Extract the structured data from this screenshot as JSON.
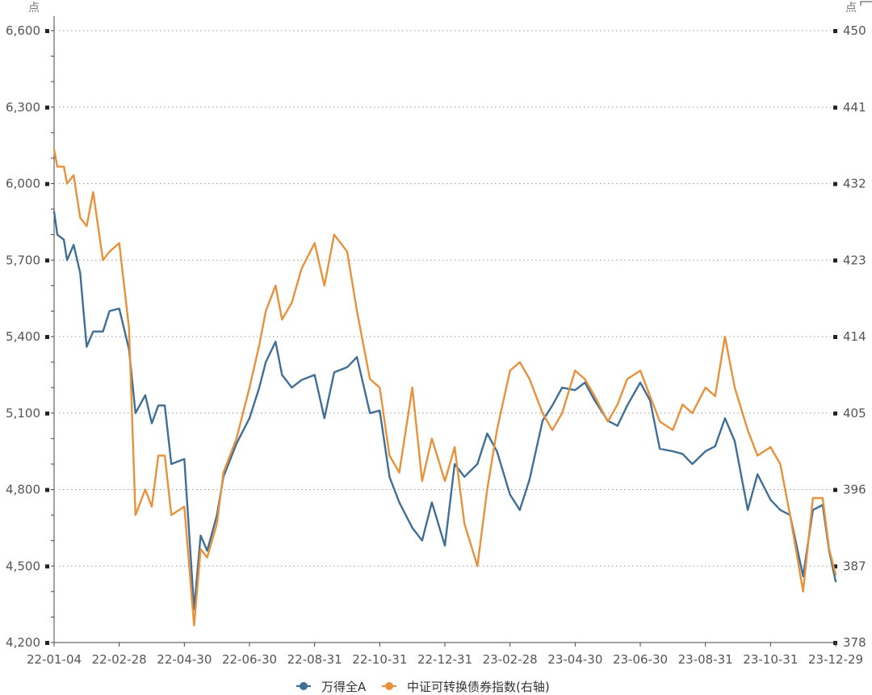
{
  "chart_data": {
    "type": "line",
    "left_axis": {
      "unit": "点",
      "ticks": [
        "6,600",
        "6,300",
        "6,000",
        "5,700",
        "5,400",
        "5,100",
        "4,800",
        "4,500",
        "4,200"
      ],
      "range": [
        4200,
        6600
      ]
    },
    "right_axis": {
      "unit": "点",
      "ticks": [
        "450",
        "441",
        "432",
        "423",
        "414",
        "405",
        "396",
        "387",
        "378"
      ],
      "range": [
        378,
        450
      ]
    },
    "x_tick_labels": [
      "22-01-04",
      "22-02-28",
      "22-04-30",
      "22-06-30",
      "22-08-31",
      "22-10-31",
      "22-12-31",
      "23-02-28",
      "23-04-30",
      "23-06-30",
      "23-08-31",
      "23-10-31",
      "23-12-29"
    ],
    "x_range": [
      0,
      24
    ],
    "grid": "horizontal dotted",
    "legend_position": "bottom-center",
    "series": [
      {
        "name": "万得全A",
        "axis": "left",
        "color": "#3f6f96",
        "x": [
          0,
          0.1,
          0.3,
          0.4,
          0.6,
          0.8,
          1.0,
          1.2,
          1.5,
          1.7,
          2.0,
          2.3,
          2.5,
          2.8,
          3.0,
          3.2,
          3.4,
          3.6,
          4.0,
          4.3,
          4.5,
          4.7,
          5.0,
          5.2,
          5.6,
          6.0,
          6.3,
          6.5,
          6.8,
          7.0,
          7.3,
          7.6,
          8.0,
          8.3,
          8.6,
          9.0,
          9.3,
          9.7,
          10.0,
          10.3,
          10.6,
          11.0,
          11.3,
          11.6,
          12.0,
          12.3,
          12.6,
          13.0,
          13.3,
          13.6,
          14.0,
          14.3,
          14.6,
          15.0,
          15.3,
          15.6,
          16.0,
          16.3,
          16.6,
          17.0,
          17.3,
          17.6,
          18.0,
          18.3,
          18.6,
          19.0,
          19.3,
          19.6,
          20.0,
          20.3,
          20.6,
          20.9,
          21.3,
          21.6,
          22.0,
          22.3,
          22.6,
          23.0,
          23.3,
          23.6,
          23.8,
          24.0
        ],
        "values": [
          5890,
          5800,
          5780,
          5700,
          5760,
          5650,
          5360,
          5420,
          5420,
          5500,
          5510,
          5350,
          5100,
          5170,
          5060,
          5130,
          5130,
          4900,
          4920,
          4330,
          4620,
          4560,
          4700,
          4850,
          4980,
          5080,
          5200,
          5300,
          5380,
          5250,
          5200,
          5230,
          5250,
          5080,
          5260,
          5280,
          5320,
          5100,
          5110,
          4850,
          4750,
          4650,
          4600,
          4750,
          4580,
          4900,
          4850,
          4900,
          5020,
          4950,
          4780,
          4720,
          4840,
          5070,
          5130,
          5200,
          5190,
          5220,
          5150,
          5070,
          5050,
          5130,
          5220,
          5150,
          4960,
          4950,
          4940,
          4900,
          4950,
          4970,
          5080,
          4990,
          4720,
          4860,
          4760,
          4720,
          4700,
          4460,
          4720,
          4740,
          4560,
          4440
        ]
      },
      {
        "name": "中证可转换债券指数(右轴)",
        "axis": "right",
        "color": "#e9913a",
        "x": [
          0,
          0.1,
          0.3,
          0.4,
          0.6,
          0.8,
          1.0,
          1.2,
          1.5,
          1.7,
          2.0,
          2.3,
          2.5,
          2.8,
          3.0,
          3.2,
          3.4,
          3.6,
          4.0,
          4.3,
          4.5,
          4.7,
          5.0,
          5.2,
          5.6,
          6.0,
          6.3,
          6.5,
          6.8,
          7.0,
          7.3,
          7.6,
          8.0,
          8.3,
          8.6,
          9.0,
          9.3,
          9.7,
          10.0,
          10.3,
          10.6,
          11.0,
          11.3,
          11.6,
          12.0,
          12.3,
          12.6,
          13.0,
          13.3,
          13.6,
          14.0,
          14.3,
          14.6,
          15.0,
          15.3,
          15.6,
          16.0,
          16.3,
          16.6,
          17.0,
          17.3,
          17.6,
          18.0,
          18.3,
          18.6,
          19.0,
          19.3,
          19.6,
          20.0,
          20.3,
          20.6,
          20.9,
          21.3,
          21.6,
          22.0,
          22.3,
          22.6,
          23.0,
          23.3,
          23.6,
          23.8,
          24.0
        ],
        "values": [
          436,
          434,
          434,
          432,
          433,
          428,
          427,
          431,
          423,
          424,
          425,
          415,
          393,
          396,
          394,
          400,
          400,
          393,
          394,
          380,
          389,
          388,
          392,
          398,
          402,
          408,
          413,
          417,
          420,
          416,
          418,
          422,
          425,
          420,
          426,
          424,
          417,
          409,
          408,
          400,
          398,
          408,
          397,
          402,
          397,
          401,
          392,
          387,
          396,
          403,
          410,
          411,
          409,
          405,
          403,
          405,
          410,
          409,
          407,
          404,
          406,
          409,
          410,
          407,
          404,
          403,
          406,
          405,
          408,
          407,
          414,
          408,
          403,
          400,
          401,
          399,
          393,
          384,
          395,
          395,
          389,
          386
        ]
      }
    ]
  }
}
